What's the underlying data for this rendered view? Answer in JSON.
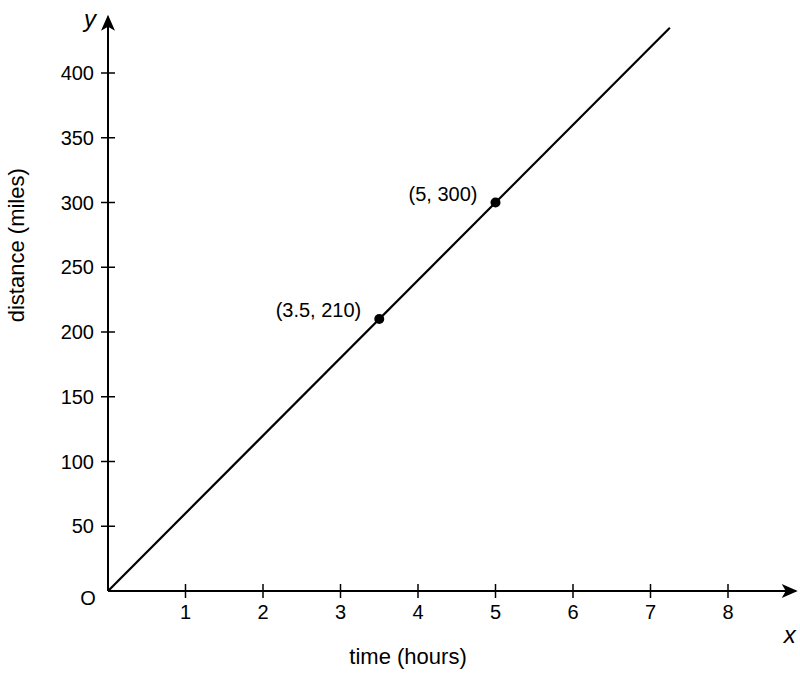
{
  "chart_data": {
    "type": "line",
    "xlabel": "time (hours)",
    "ylabel": "distance (miles)",
    "axis_letters": {
      "x": "x",
      "y": "y"
    },
    "origin_label": "O",
    "xlim": [
      0,
      8.9
    ],
    "ylim": [
      0,
      445
    ],
    "xticks": [
      1,
      2,
      3,
      4,
      5,
      6,
      7,
      8
    ],
    "yticks": [
      50,
      100,
      150,
      200,
      250,
      300,
      350,
      400
    ],
    "grid": false,
    "series": [
      {
        "type": "line",
        "color": "#000000",
        "line_style": "solid",
        "x": [
          0,
          7.25
        ],
        "values": [
          0,
          435
        ]
      },
      {
        "type": "scatter",
        "color": "#000000",
        "marker": "circle",
        "x": [
          3.5,
          5
        ],
        "values": [
          210,
          300
        ],
        "value_labels": [
          "(3.5, 210)",
          "(5, 300)"
        ]
      }
    ]
  }
}
